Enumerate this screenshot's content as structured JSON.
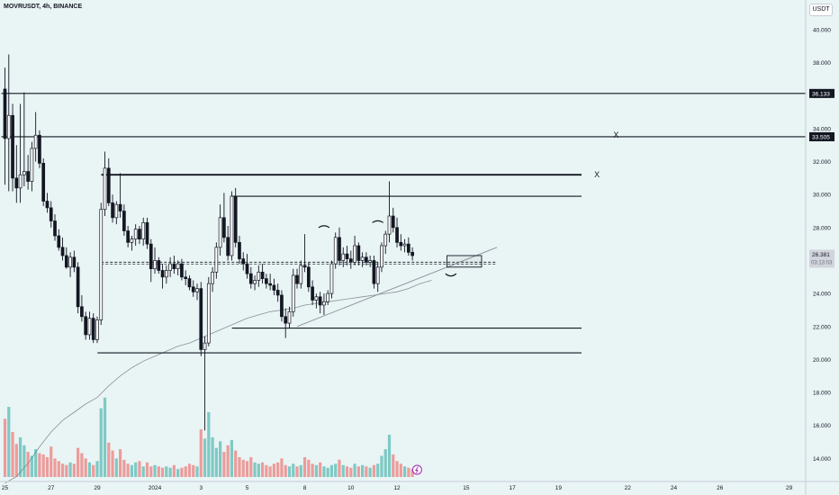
{
  "header": {
    "title": "MOVRUSDT, 4h, BINANCE",
    "currency": "USDT"
  },
  "colors": {
    "background": "#e9f4f5",
    "up": "#26a69a",
    "down": "#ef5350",
    "candle": "#131722",
    "axis_text": "#131722",
    "ma_line": "#8a9099"
  },
  "chart_data": {
    "type": "candlestick",
    "title": "MOVRUSDT, 4h, BINANCE",
    "currency": "USDT",
    "y_axis": {
      "ticks": [
        14.0,
        16.0,
        18.0,
        20.0,
        22.0,
        24.0,
        26.0,
        28.0,
        30.0,
        32.0,
        34.0,
        36.0,
        38.0,
        40.0
      ],
      "tick_labels": [
        "14.000",
        "16.000",
        "18.000",
        "20.000",
        "22.000",
        "24.000",
        "26.000",
        "28.000",
        "30.000",
        "32.000",
        "34.000",
        "36.000",
        "38.000",
        "40.000"
      ],
      "ylim": [
        12.6,
        41.8
      ]
    },
    "x_axis": {
      "ticks": [
        {
          "label": "25",
          "bar": 0
        },
        {
          "label": "27",
          "bar": 12
        },
        {
          "label": "29",
          "bar": 24
        },
        {
          "label": "2024",
          "bar": 39
        },
        {
          "label": "3",
          "bar": 51
        },
        {
          "label": "5",
          "bar": 63
        },
        {
          "label": "8",
          "bar": 78
        },
        {
          "label": "10",
          "bar": 90
        },
        {
          "label": "12",
          "bar": 102
        },
        {
          "label": "15",
          "bar": 120
        },
        {
          "label": "17",
          "bar": 132
        },
        {
          "label": "19",
          "bar": 144
        },
        {
          "label": "22",
          "bar": 162
        },
        {
          "label": "24",
          "bar": 174
        },
        {
          "label": "26",
          "bar": 186
        },
        {
          "label": "29",
          "bar": 204
        }
      ]
    },
    "candles": [
      [
        36.4,
        37.7,
        30.6,
        33.4
      ],
      [
        33.4,
        38.5,
        30.2,
        34.8
      ],
      [
        34.8,
        35.5,
        30.2,
        31.0
      ],
      [
        31.0,
        33.0,
        29.5,
        30.4
      ],
      [
        30.4,
        35.5,
        29.5,
        31.2
      ],
      [
        31.2,
        36.2,
        30.5,
        31.4
      ],
      [
        31.4,
        32.4,
        30.3,
        30.8
      ],
      [
        30.8,
        33.2,
        30.2,
        32.8
      ],
      [
        32.8,
        35.0,
        32.0,
        33.6
      ],
      [
        33.6,
        33.9,
        31.6,
        31.9
      ],
      [
        31.9,
        32.2,
        29.3,
        29.6
      ],
      [
        29.6,
        30.1,
        28.9,
        29.2
      ],
      [
        29.2,
        29.6,
        28.0,
        28.4
      ],
      [
        28.4,
        28.8,
        27.2,
        27.5
      ],
      [
        27.5,
        27.9,
        26.6,
        26.8
      ],
      [
        26.8,
        27.4,
        26.0,
        26.3
      ],
      [
        26.3,
        26.8,
        25.5,
        25.6
      ],
      [
        25.6,
        26.5,
        25.0,
        26.2
      ],
      [
        26.2,
        26.6,
        25.3,
        25.6
      ],
      [
        25.6,
        25.9,
        22.8,
        23.2
      ],
      [
        23.2,
        23.9,
        22.3,
        22.6
      ],
      [
        22.6,
        22.9,
        21.2,
        21.5
      ],
      [
        21.5,
        22.9,
        21.2,
        22.5
      ],
      [
        22.5,
        22.8,
        21.0,
        21.2
      ],
      [
        21.2,
        22.6,
        21.0,
        22.4
      ],
      [
        22.4,
        29.5,
        22.1,
        29.1
      ],
      [
        29.1,
        32.6,
        28.7,
        31.6
      ],
      [
        31.6,
        32.2,
        29.3,
        29.5
      ],
      [
        29.5,
        30.0,
        28.3,
        28.6
      ],
      [
        28.6,
        29.6,
        28.2,
        29.4
      ],
      [
        29.4,
        31.3,
        28.6,
        29.0
      ],
      [
        29.0,
        29.4,
        27.5,
        27.8
      ],
      [
        27.8,
        28.1,
        26.8,
        27.1
      ],
      [
        27.1,
        27.5,
        26.6,
        27.3
      ],
      [
        27.3,
        28.2,
        26.9,
        27.9
      ],
      [
        27.9,
        28.1,
        27.0,
        27.3
      ],
      [
        27.3,
        28.6,
        26.9,
        28.3
      ],
      [
        28.3,
        28.6,
        26.7,
        27.0
      ],
      [
        27.0,
        27.3,
        24.7,
        25.5
      ],
      [
        25.5,
        26.8,
        25.2,
        26.0
      ],
      [
        26.0,
        26.2,
        25.2,
        25.4
      ],
      [
        25.4,
        25.8,
        24.3,
        25.0
      ],
      [
        25.0,
        25.7,
        24.6,
        25.4
      ],
      [
        25.4,
        26.2,
        25.0,
        25.8
      ],
      [
        25.8,
        26.3,
        25.2,
        25.5
      ],
      [
        25.5,
        26.0,
        25.1,
        25.8
      ],
      [
        25.8,
        26.1,
        24.8,
        25.0
      ],
      [
        25.0,
        25.4,
        24.5,
        24.9
      ],
      [
        24.9,
        25.1,
        24.2,
        24.4
      ],
      [
        24.4,
        24.8,
        23.8,
        24.1
      ],
      [
        24.1,
        24.6,
        23.6,
        24.3
      ],
      [
        24.3,
        24.7,
        20.2,
        20.6
      ],
      [
        20.6,
        21.4,
        15.7,
        21.0
      ],
      [
        21.0,
        25.0,
        20.8,
        24.6
      ],
      [
        24.6,
        25.6,
        24.1,
        25.3
      ],
      [
        25.3,
        27.1,
        24.9,
        26.8
      ],
      [
        26.8,
        29.4,
        26.3,
        28.6
      ],
      [
        28.6,
        30.1,
        27.1,
        27.4
      ],
      [
        27.4,
        28.1,
        26.0,
        26.3
      ],
      [
        26.3,
        30.2,
        26.0,
        29.9
      ],
      [
        29.9,
        30.4,
        26.8,
        27.1
      ],
      [
        27.1,
        27.5,
        25.8,
        26.1
      ],
      [
        26.1,
        26.5,
        25.4,
        25.8
      ],
      [
        25.8,
        26.4,
        24.9,
        25.2
      ],
      [
        25.2,
        25.6,
        24.3,
        24.6
      ],
      [
        24.6,
        25.1,
        24.2,
        24.8
      ],
      [
        24.8,
        25.7,
        24.4,
        25.3
      ],
      [
        25.3,
        25.8,
        24.6,
        24.9
      ],
      [
        24.9,
        25.2,
        24.3,
        24.6
      ],
      [
        24.6,
        25.2,
        24.2,
        24.5
      ],
      [
        24.5,
        24.9,
        23.9,
        24.2
      ],
      [
        24.2,
        24.6,
        23.5,
        23.9
      ],
      [
        23.9,
        24.2,
        22.3,
        22.6
      ],
      [
        22.6,
        23.1,
        21.3,
        22.2
      ],
      [
        22.2,
        23.2,
        21.9,
        22.9
      ],
      [
        22.9,
        25.5,
        22.6,
        25.1
      ],
      [
        25.1,
        25.5,
        24.3,
        24.6
      ],
      [
        24.6,
        26.0,
        24.3,
        25.7
      ],
      [
        25.7,
        27.6,
        25.3,
        25.6
      ],
      [
        25.6,
        25.9,
        24.1,
        24.4
      ],
      [
        24.4,
        24.8,
        23.3,
        23.6
      ],
      [
        23.6,
        24.0,
        23.1,
        23.8
      ],
      [
        23.8,
        24.1,
        22.8,
        23.3
      ],
      [
        23.3,
        24.0,
        22.7,
        23.5
      ],
      [
        23.5,
        24.2,
        23.3,
        24.0
      ],
      [
        24.0,
        26.0,
        23.7,
        25.8
      ],
      [
        25.8,
        27.7,
        25.5,
        27.4
      ],
      [
        27.4,
        28.0,
        25.7,
        26.0
      ],
      [
        26.0,
        26.8,
        25.6,
        26.4
      ],
      [
        26.4,
        26.9,
        25.7,
        26.1
      ],
      [
        26.1,
        26.6,
        25.5,
        25.9
      ],
      [
        25.9,
        27.5,
        25.7,
        26.9
      ],
      [
        26.9,
        27.1,
        25.7,
        26.0
      ],
      [
        26.0,
        26.5,
        25.6,
        26.2
      ],
      [
        26.2,
        26.5,
        25.7,
        25.9
      ],
      [
        25.9,
        26.3,
        25.6,
        26.0
      ],
      [
        26.0,
        26.3,
        24.3,
        24.6
      ],
      [
        24.6,
        25.9,
        24.1,
        25.6
      ],
      [
        25.6,
        27.1,
        25.3,
        26.9
      ],
      [
        26.9,
        27.8,
        26.4,
        27.6
      ],
      [
        27.6,
        30.8,
        27.1,
        28.7
      ],
      [
        28.7,
        29.2,
        27.7,
        28.0
      ],
      [
        28.0,
        28.6,
        26.8,
        27.1
      ],
      [
        27.1,
        27.6,
        26.6,
        26.9
      ],
      [
        26.9,
        27.3,
        26.5,
        27.0
      ],
      [
        27.0,
        27.4,
        26.3,
        26.5
      ],
      [
        26.5,
        26.8,
        26.0,
        26.3
      ]
    ],
    "volumes": [
      44,
      53,
      34,
      25,
      30,
      24,
      19,
      16,
      21,
      18,
      17,
      15,
      23,
      14,
      12,
      10,
      9,
      11,
      10,
      22,
      18,
      14,
      11,
      9,
      12,
      52,
      60,
      26,
      20,
      14,
      21,
      13,
      10,
      9,
      11,
      12,
      8,
      11,
      8,
      9,
      8,
      7,
      8,
      7,
      9,
      6,
      7,
      8,
      10,
      9,
      8,
      36,
      29,
      49,
      30,
      22,
      27,
      19,
      24,
      28,
      20,
      15,
      13,
      12,
      15,
      11,
      10,
      11,
      9,
      8,
      10,
      11,
      14,
      9,
      8,
      10,
      8,
      9,
      15,
      13,
      10,
      9,
      11,
      8,
      7,
      9,
      10,
      13,
      9,
      8,
      7,
      10,
      8,
      9,
      8,
      7,
      9,
      10,
      16,
      21,
      32,
      17,
      12,
      10,
      8,
      7,
      6
    ],
    "moving_average": [
      [
        0,
        12.5
      ],
      [
        3,
        12.9
      ],
      [
        6,
        13.7
      ],
      [
        9,
        14.7
      ],
      [
        12,
        15.6
      ],
      [
        15,
        16.3
      ],
      [
        18,
        16.8
      ],
      [
        21,
        17.3
      ],
      [
        24,
        17.7
      ],
      [
        27,
        18.4
      ],
      [
        30,
        19.0
      ],
      [
        33,
        19.5
      ],
      [
        36,
        19.9
      ],
      [
        39,
        20.2
      ],
      [
        42,
        20.5
      ],
      [
        45,
        20.8
      ],
      [
        48,
        21.0
      ],
      [
        51,
        21.3
      ],
      [
        54,
        21.6
      ],
      [
        57,
        21.9
      ],
      [
        60,
        22.2
      ],
      [
        63,
        22.5
      ],
      [
        66,
        22.7
      ],
      [
        69,
        22.9
      ],
      [
        72,
        23.0
      ],
      [
        75,
        23.1
      ],
      [
        78,
        23.3
      ],
      [
        81,
        23.4
      ],
      [
        84,
        23.5
      ],
      [
        87,
        23.6
      ],
      [
        90,
        23.7
      ],
      [
        93,
        23.8
      ],
      [
        96,
        23.9
      ],
      [
        99,
        24.0
      ],
      [
        102,
        24.1
      ],
      [
        105,
        24.3
      ],
      [
        108,
        24.6
      ],
      [
        111,
        24.8
      ]
    ],
    "levels": [
      {
        "price": 36.133,
        "label": "36.133",
        "x_start_bar": 0
      },
      {
        "price": 33.505,
        "label": "33.505",
        "x_start_bar": 0
      },
      {
        "price": 31.2,
        "x_start_bar": 26,
        "x_end_bar": 150,
        "thick": true
      },
      {
        "price": 29.9,
        "x_start_bar": 60,
        "x_end_bar": 150
      },
      {
        "price": 21.9,
        "x_start_bar": 60,
        "x_end_bar": 150
      },
      {
        "price": 20.4,
        "x_start_bar": 25,
        "x_end_bar": 150
      }
    ],
    "markers": [
      {
        "label": "X",
        "bar": 154,
        "price": 31.2
      },
      {
        "label": "X",
        "bar": 159,
        "price": 33.6
      }
    ],
    "trendline": {
      "from": [
        76,
        22.0
      ],
      "to": [
        128,
        26.8
      ]
    },
    "current_price": {
      "value": 26.381,
      "label": "26.381",
      "countdown": "03:13:03",
      "dashed_level": 25.9
    },
    "target_box": {
      "from_bar": 115,
      "to_bar": 124,
      "top": 26.3,
      "bottom": 25.6
    }
  }
}
